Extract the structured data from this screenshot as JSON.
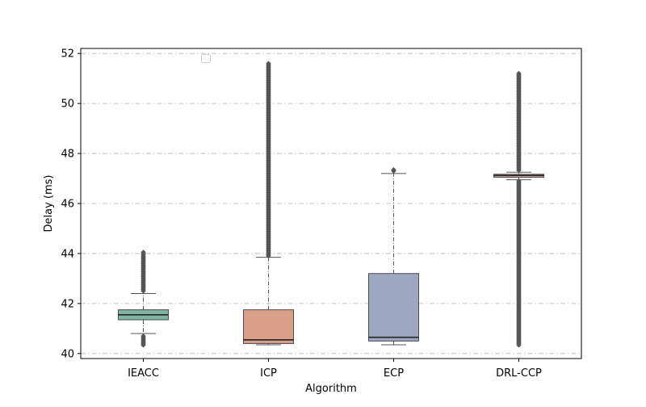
{
  "chart_data": {
    "type": "box",
    "title": "",
    "xlabel": "Algorithm",
    "ylabel": "Delay (ms)",
    "ylim": [
      39.8,
      52.2
    ],
    "yticks": [
      40,
      42,
      44,
      46,
      48,
      50,
      52
    ],
    "grid": "y-dashdot",
    "legend": {
      "placement": "top-left",
      "entries": []
    },
    "categories": [
      "IEACC",
      "ICP",
      "ECP",
      "DRL-CCP"
    ],
    "series": [
      {
        "category": "IEACC",
        "color": "#7fb3a3",
        "whisker_low": 40.8,
        "q1": 41.35,
        "median": 41.55,
        "q3": 41.75,
        "whisker_high": 42.4,
        "outliers_low": [
          40.3,
          40.7
        ],
        "outliers_high": [
          42.45,
          44.05
        ]
      },
      {
        "category": "ICP",
        "color": "#d99f88",
        "whisker_low": 40.35,
        "q1": 40.4,
        "median": 40.55,
        "q3": 41.75,
        "whisker_high": 43.85,
        "outliers_low": [],
        "outliers_high": [
          43.9,
          51.6
        ]
      },
      {
        "category": "ECP",
        "color": "#9ea7c2",
        "whisker_low": 40.35,
        "q1": 40.5,
        "median": 40.65,
        "q3": 43.2,
        "whisker_high": 47.2,
        "outliers_low": [],
        "outliers_high": [
          47.25,
          47.35
        ]
      },
      {
        "category": "DRL-CCP",
        "color": "#e0b2ad",
        "whisker_low": 46.95,
        "q1": 47.05,
        "median": 47.12,
        "q3": 47.17,
        "whisker_high": 47.25,
        "outliers_low": [
          40.3,
          46.9
        ],
        "outliers_high": [
          47.3,
          51.2
        ]
      }
    ]
  }
}
